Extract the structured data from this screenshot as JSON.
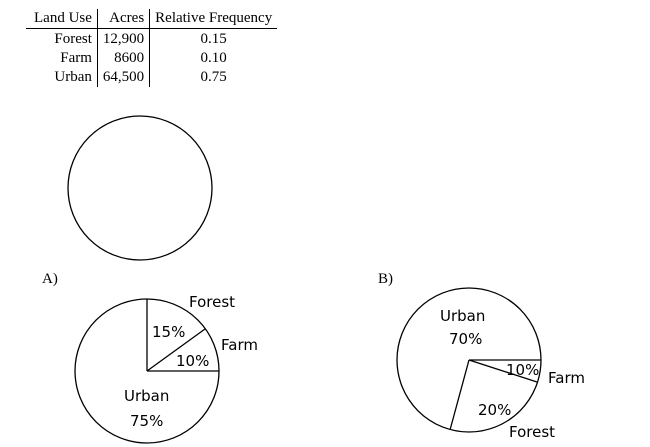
{
  "table": {
    "headers": [
      "Land Use",
      "Acres",
      "Relative Frequency"
    ],
    "rows": [
      {
        "land_use": "Forest",
        "acres": "12,900",
        "freq": "0.15"
      },
      {
        "land_use": "Farm",
        "acres": "8600",
        "freq": "0.10"
      },
      {
        "land_use": "Urban",
        "acres": "64,500",
        "freq": "0.75"
      }
    ]
  },
  "options": {
    "a": {
      "label": "A)",
      "slices": [
        {
          "name": "Forest",
          "pct": "15%"
        },
        {
          "name": "Farm",
          "pct": "10%"
        },
        {
          "name": "Urban",
          "pct": "75%"
        }
      ]
    },
    "b": {
      "label": "B)",
      "slices": [
        {
          "name": "Urban",
          "pct": "70%"
        },
        {
          "name": "Farm",
          "pct": "10%"
        },
        {
          "name": "Forest",
          "pct": "20%"
        }
      ]
    }
  }
}
